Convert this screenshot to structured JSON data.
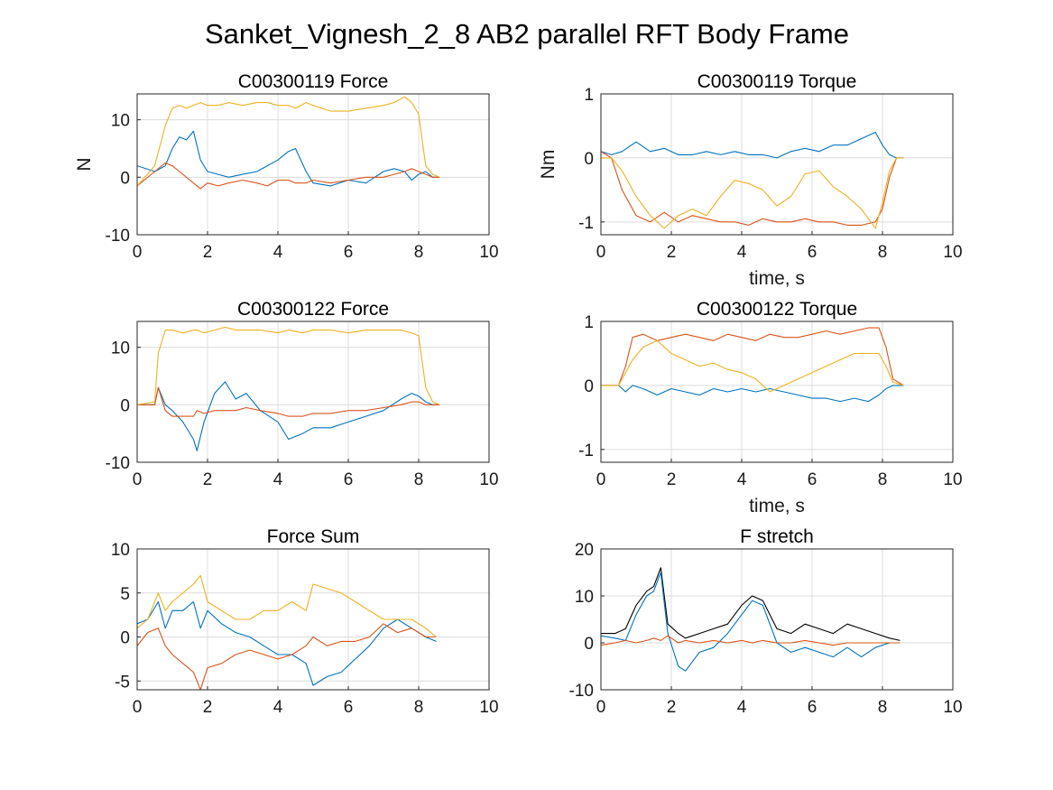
{
  "figure_title": "Sanket_Vignesh_2_8 AB2 parallel RFT Body Frame",
  "colors": {
    "blue": "#0072BD",
    "orange": "#D95319",
    "yellow": "#EDB120",
    "black": "#000000"
  },
  "chart_data": [
    {
      "type": "line",
      "title": "C00300119 Force",
      "xlabel": "",
      "ylabel": "N",
      "xlim": [
        0,
        10
      ],
      "ylim": [
        -10,
        14.5
      ],
      "xticks": [
        "0",
        "2",
        "4",
        "6",
        "8",
        "10"
      ],
      "yticks": [
        -10,
        0,
        10
      ],
      "ytick_labels": [
        "-10",
        "0",
        "10"
      ],
      "grid": true,
      "x": [
        0,
        0.5,
        0.8,
        1.0,
        1.2,
        1.4,
        1.6,
        1.8,
        2.0,
        2.3,
        2.6,
        3.0,
        3.4,
        3.7,
        4.0,
        4.3,
        4.5,
        4.8,
        5.0,
        5.5,
        6.0,
        6.5,
        7.0,
        7.3,
        7.6,
        7.8,
        8.0,
        8.2,
        8.4,
        8.6
      ],
      "series": [
        {
          "color": "#0072BD",
          "values": [
            2,
            1,
            2,
            5,
            7,
            6.5,
            8,
            3,
            1,
            0.5,
            0,
            0.5,
            1,
            2,
            3,
            4.5,
            5,
            1,
            -1,
            -1.5,
            -0.5,
            -1,
            1,
            1.5,
            1,
            -0.5,
            0.5,
            1,
            0,
            0
          ]
        },
        {
          "color": "#D95319",
          "values": [
            -1.5,
            1,
            2.5,
            2,
            1,
            0,
            -1,
            -2,
            -1,
            -1.5,
            -1,
            -0.5,
            -1,
            -1.5,
            -0.5,
            -0.5,
            -1,
            -1,
            -0.5,
            -1,
            -0.5,
            0,
            0,
            0.5,
            1,
            1.5,
            1,
            0.5,
            0,
            0
          ]
        },
        {
          "color": "#EDB120",
          "values": [
            -1.5,
            2,
            9,
            12,
            12.5,
            12,
            12.5,
            13,
            12.5,
            12.5,
            13,
            12.5,
            13,
            13,
            12.5,
            12.5,
            12,
            13,
            12.5,
            11.5,
            11.5,
            12,
            12.5,
            13,
            14,
            13,
            11,
            2,
            0.5,
            0
          ]
        }
      ]
    },
    {
      "type": "line",
      "title": "C00300119 Torque",
      "xlabel": "time, s",
      "ylabel": "Nm",
      "xlim": [
        0,
        10
      ],
      "ylim": [
        -1.2,
        1
      ],
      "xticks": [
        "0",
        "2",
        "4",
        "6",
        "8",
        "10"
      ],
      "yticks": [
        -1,
        0,
        1
      ],
      "ytick_labels": [
        "-1",
        "0",
        "1"
      ],
      "grid": true,
      "x": [
        0,
        0.3,
        0.6,
        1.0,
        1.4,
        1.8,
        2.2,
        2.6,
        3.0,
        3.4,
        3.8,
        4.2,
        4.6,
        5.0,
        5.4,
        5.8,
        6.2,
        6.6,
        7.0,
        7.4,
        7.8,
        8.0,
        8.2,
        8.4,
        8.6
      ],
      "series": [
        {
          "color": "#0072BD",
          "values": [
            0.1,
            0.05,
            0.1,
            0.25,
            0.1,
            0.15,
            0.05,
            0.05,
            0.1,
            0.05,
            0.1,
            0.05,
            0.05,
            0,
            0.1,
            0.15,
            0.1,
            0.2,
            0.2,
            0.3,
            0.4,
            0.2,
            0.05,
            0,
            0
          ]
        },
        {
          "color": "#D95319",
          "values": [
            0.1,
            0,
            -0.5,
            -0.9,
            -1.0,
            -0.85,
            -1.0,
            -0.9,
            -0.95,
            -1.0,
            -1.0,
            -1.05,
            -0.95,
            -1.0,
            -1.0,
            -0.95,
            -1.0,
            -1.0,
            -1.05,
            -1.05,
            -1.0,
            -0.8,
            -0.3,
            0,
            0
          ]
        },
        {
          "color": "#EDB120",
          "values": [
            0,
            0,
            -0.2,
            -0.6,
            -0.9,
            -1.1,
            -0.9,
            -0.8,
            -0.9,
            -0.6,
            -0.35,
            -0.4,
            -0.5,
            -0.75,
            -0.6,
            -0.25,
            -0.2,
            -0.45,
            -0.6,
            -0.8,
            -1.1,
            -0.7,
            -0.2,
            0,
            0
          ]
        }
      ]
    },
    {
      "type": "line",
      "title": "C00300122 Force",
      "xlabel": "",
      "ylabel": "",
      "xlim": [
        0,
        10
      ],
      "ylim": [
        -10,
        14.5
      ],
      "xticks": [
        "0",
        "2",
        "4",
        "6",
        "8",
        "10"
      ],
      "yticks": [
        -10,
        0,
        10
      ],
      "ytick_labels": [
        "-10",
        "0",
        "10"
      ],
      "grid": true,
      "x": [
        0,
        0.5,
        0.6,
        0.8,
        1.0,
        1.3,
        1.6,
        1.7,
        1.9,
        2.2,
        2.5,
        2.8,
        3.1,
        3.5,
        4.0,
        4.3,
        4.7,
        5.0,
        5.5,
        6.0,
        6.5,
        7.0,
        7.5,
        7.8,
        8.0,
        8.2,
        8.4,
        8.6
      ],
      "series": [
        {
          "color": "#0072BD",
          "values": [
            0,
            0,
            3,
            0,
            -1,
            -3,
            -6,
            -8,
            -3,
            2,
            4,
            1,
            2,
            -1,
            -3,
            -6,
            -5,
            -4,
            -4,
            -3,
            -2,
            -1,
            1,
            2,
            1.5,
            0.5,
            0,
            0
          ]
        },
        {
          "color": "#D95319",
          "values": [
            0,
            0,
            3,
            -1,
            -2,
            -2,
            -2,
            -1,
            -1.5,
            -1,
            -1,
            -1,
            -0.5,
            -1,
            -1.5,
            -2,
            -2,
            -1.5,
            -1.5,
            -1,
            -1,
            -0.5,
            0,
            0.5,
            0.5,
            0,
            0,
            0
          ]
        },
        {
          "color": "#EDB120",
          "values": [
            0,
            0.5,
            9,
            13,
            13,
            12.5,
            13,
            13,
            12.5,
            13,
            13.5,
            13,
            13,
            13,
            12.5,
            13,
            12.5,
            13,
            13,
            12.5,
            13,
            13,
            13,
            12.5,
            12,
            3,
            0.5,
            0
          ]
        }
      ]
    },
    {
      "type": "line",
      "title": "C00300122 Torque",
      "xlabel": "time, s",
      "ylabel": "",
      "xlim": [
        0,
        10
      ],
      "ylim": [
        -1.2,
        1
      ],
      "xticks": [
        "0",
        "2",
        "4",
        "6",
        "8",
        "10"
      ],
      "yticks": [
        -1,
        0,
        1
      ],
      "ytick_labels": [
        "-1",
        "0",
        "1"
      ],
      "grid": true,
      "x": [
        0,
        0.5,
        0.7,
        0.9,
        1.2,
        1.6,
        2.0,
        2.4,
        2.8,
        3.2,
        3.6,
        4.0,
        4.4,
        4.8,
        5.2,
        5.6,
        6.0,
        6.4,
        6.8,
        7.2,
        7.6,
        7.9,
        8.1,
        8.3,
        8.6
      ],
      "series": [
        {
          "color": "#0072BD",
          "values": [
            0,
            0,
            -0.1,
            0,
            -0.05,
            -0.15,
            -0.05,
            -0.1,
            -0.15,
            -0.05,
            -0.1,
            -0.05,
            -0.1,
            -0.05,
            -0.1,
            -0.15,
            -0.2,
            -0.2,
            -0.25,
            -0.2,
            -0.25,
            -0.15,
            -0.05,
            0,
            0
          ]
        },
        {
          "color": "#D95319",
          "values": [
            0,
            0,
            0.3,
            0.75,
            0.8,
            0.7,
            0.75,
            0.8,
            0.75,
            0.7,
            0.8,
            0.75,
            0.7,
            0.8,
            0.75,
            0.75,
            0.8,
            0.85,
            0.8,
            0.85,
            0.9,
            0.9,
            0.6,
            0.1,
            0
          ]
        },
        {
          "color": "#EDB120",
          "values": [
            0,
            0,
            0.2,
            0.4,
            0.6,
            0.7,
            0.5,
            0.4,
            0.3,
            0.35,
            0.25,
            0.2,
            0.1,
            -0.1,
            0,
            0.1,
            0.2,
            0.3,
            0.4,
            0.5,
            0.5,
            0.5,
            0.3,
            0.05,
            0
          ]
        }
      ]
    },
    {
      "type": "line",
      "title": "Force Sum",
      "xlabel": "",
      "ylabel": "",
      "xlim": [
        0,
        10
      ],
      "ylim": [
        -6,
        10
      ],
      "xticks": [
        "0",
        "2",
        "4",
        "6",
        "8",
        "10"
      ],
      "yticks": [
        -5,
        0,
        5,
        10
      ],
      "ytick_labels": [
        "-5",
        "0",
        "5",
        "10"
      ],
      "grid": true,
      "x": [
        0,
        0.3,
        0.6,
        0.8,
        1.0,
        1.3,
        1.6,
        1.8,
        2.0,
        2.4,
        2.8,
        3.2,
        3.6,
        4.0,
        4.4,
        4.8,
        5.0,
        5.4,
        5.8,
        6.2,
        6.6,
        7.0,
        7.4,
        7.8,
        8.2,
        8.5
      ],
      "series": [
        {
          "color": "#0072BD",
          "values": [
            1.5,
            2,
            4,
            1,
            3,
            3,
            4,
            1,
            3,
            1.5,
            0.5,
            0,
            -1,
            -2,
            -2,
            -3,
            -5.5,
            -4.5,
            -4,
            -2.5,
            -1,
            1,
            2,
            1,
            0,
            -0.5
          ]
        },
        {
          "color": "#D95319",
          "values": [
            -1,
            0.5,
            1,
            -1,
            -2,
            -3,
            -4,
            -6,
            -3.5,
            -3,
            -2,
            -1.5,
            -2,
            -2.5,
            -2,
            -1,
            0,
            -1,
            -0.5,
            -0.5,
            0,
            1.5,
            0.5,
            1,
            0,
            0
          ]
        },
        {
          "color": "#EDB120",
          "values": [
            1,
            2,
            5,
            3,
            4,
            5,
            6,
            7,
            4,
            3,
            2,
            2,
            3,
            3,
            4,
            3,
            6,
            5.5,
            5,
            4,
            3,
            2,
            2,
            2,
            1,
            0
          ]
        }
      ]
    },
    {
      "type": "line",
      "title": "F stretch",
      "xlabel": "",
      "ylabel": "",
      "xlim": [
        0,
        10
      ],
      "ylim": [
        -10,
        20
      ],
      "xticks": [
        "0",
        "2",
        "4",
        "6",
        "8",
        "10"
      ],
      "yticks": [
        -10,
        0,
        10,
        20
      ],
      "ytick_labels": [
        "-10",
        "0",
        "10",
        "20"
      ],
      "grid": true,
      "x": [
        0,
        0.4,
        0.7,
        1.0,
        1.3,
        1.5,
        1.7,
        1.9,
        2.2,
        2.4,
        2.8,
        3.2,
        3.6,
        4.0,
        4.3,
        4.6,
        5.0,
        5.4,
        5.8,
        6.2,
        6.6,
        7.0,
        7.4,
        7.8,
        8.2,
        8.5
      ],
      "series": [
        {
          "color": "#000000",
          "values": [
            2,
            2,
            3,
            8,
            11,
            12,
            16,
            4,
            2,
            1,
            2,
            3,
            4,
            8,
            10,
            9,
            3,
            2,
            4,
            3,
            2,
            4,
            3,
            2,
            1,
            0.5
          ]
        },
        {
          "color": "#0072BD",
          "values": [
            1.5,
            1,
            0.5,
            6,
            10,
            11,
            15,
            2,
            -5,
            -6,
            -2,
            -1,
            2,
            6,
            9,
            8,
            0,
            -2,
            -1,
            -2,
            -3,
            -1,
            -3,
            -1,
            0,
            0
          ]
        },
        {
          "color": "#D95319",
          "values": [
            -0.5,
            0,
            0.5,
            0,
            0.5,
            1,
            0.5,
            1.5,
            0,
            0.5,
            0,
            0.5,
            0,
            0.5,
            0,
            0.5,
            0,
            0,
            0.5,
            0,
            -0.5,
            0,
            0,
            0,
            0,
            0
          ]
        }
      ]
    }
  ]
}
